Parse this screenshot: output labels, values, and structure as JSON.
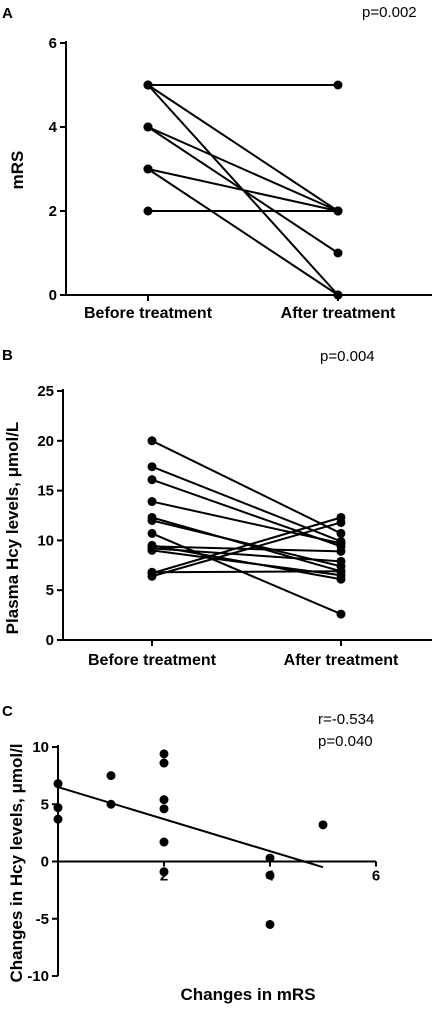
{
  "chart_data": [
    {
      "panel": "A",
      "type": "line",
      "annotations": [
        "p=0.002"
      ],
      "ylabel": "mRS",
      "xlabel": "",
      "categories": [
        "Before treatment",
        "After treatment"
      ],
      "ylim": [
        0,
        6
      ],
      "yticks": [
        0,
        2,
        4,
        6
      ],
      "series": [
        {
          "values": [
            5,
            5
          ]
        },
        {
          "values": [
            5,
            0
          ]
        },
        {
          "values": [
            5,
            2
          ]
        },
        {
          "values": [
            4,
            2
          ]
        },
        {
          "values": [
            4,
            1
          ]
        },
        {
          "values": [
            3,
            2
          ]
        },
        {
          "values": [
            3,
            0
          ]
        },
        {
          "values": [
            2,
            2
          ]
        }
      ]
    },
    {
      "panel": "B",
      "type": "line",
      "annotations": [
        "p=0.004"
      ],
      "ylabel": "Plasma Hcy levels, μmol/L",
      "xlabel": "",
      "categories": [
        "Before treatment",
        "After treatment"
      ],
      "ylim": [
        0,
        25
      ],
      "yticks": [
        0,
        5,
        10,
        15,
        20,
        25
      ],
      "series": [
        {
          "values": [
            20.0,
            10.7
          ]
        },
        {
          "values": [
            17.4,
            9.9
          ]
        },
        {
          "values": [
            16.1,
            9.4
          ]
        },
        {
          "values": [
            13.9,
            9.7
          ]
        },
        {
          "values": [
            12.3,
            6.9
          ]
        },
        {
          "values": [
            12.0,
            7.4
          ]
        },
        {
          "values": [
            10.7,
            2.6
          ]
        },
        {
          "values": [
            9.5,
            6.1
          ]
        },
        {
          "values": [
            9.2,
            7.9
          ]
        },
        {
          "values": [
            9.0,
            6.5
          ]
        },
        {
          "values": [
            6.7,
            12.3
          ]
        },
        {
          "values": [
            6.4,
            11.8
          ]
        },
        {
          "values": [
            6.8,
            6.9
          ]
        },
        {
          "values": [
            9.4,
            8.9
          ]
        }
      ]
    },
    {
      "panel": "C",
      "type": "scatter",
      "annotations": [
        "r=-0.534",
        "p=0.040"
      ],
      "xlabel": "Changes in mRS",
      "ylabel": "Changes in Hcy levels, μmol/l",
      "xlim": [
        0,
        6
      ],
      "ylim": [
        -10,
        10
      ],
      "xticks": [
        2,
        4,
        6
      ],
      "yticks": [
        -10,
        -5,
        0,
        5,
        10
      ],
      "points": [
        {
          "x": 0,
          "y": 6.8
        },
        {
          "x": 0,
          "y": 4.7
        },
        {
          "x": 0,
          "y": 3.7
        },
        {
          "x": 1,
          "y": 7.5
        },
        {
          "x": 1,
          "y": 5.0
        },
        {
          "x": 2,
          "y": 9.4
        },
        {
          "x": 2,
          "y": 8.6
        },
        {
          "x": 2,
          "y": 5.4
        },
        {
          "x": 2,
          "y": 4.6
        },
        {
          "x": 2,
          "y": 1.7
        },
        {
          "x": 2,
          "y": -0.9
        },
        {
          "x": 4,
          "y": 0.3
        },
        {
          "x": 4,
          "y": -1.2
        },
        {
          "x": 4,
          "y": -5.5
        },
        {
          "x": 5,
          "y": 3.2
        }
      ],
      "fit_line": {
        "x": [
          0,
          5
        ],
        "y": [
          6.5,
          -0.5
        ]
      }
    }
  ]
}
